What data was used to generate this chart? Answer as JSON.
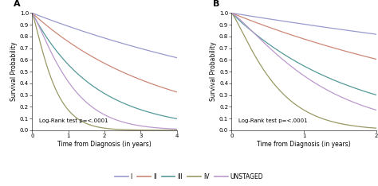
{
  "panel_A": {
    "title": "A",
    "xlim": [
      0,
      4
    ],
    "ylim": [
      0.0,
      1.0
    ],
    "xticks": [
      0,
      1,
      2,
      3,
      4
    ],
    "yticks": [
      0.0,
      0.1,
      0.2,
      0.3,
      0.4,
      0.5,
      0.6,
      0.7,
      0.8,
      0.9,
      1.0
    ],
    "xlabel": "Time from Diagnosis (in years)",
    "ylabel": "Survival Probability",
    "annotation": "Log-Rank test p=<.0001",
    "curves": {
      "I": {
        "color": "#9999cc",
        "lam": 0.12,
        "k": 1.0
      },
      "II": {
        "color": "#cc8877",
        "lam": 0.28,
        "k": 1.0
      },
      "III": {
        "color": "#559999",
        "lam": 0.58,
        "k": 1.0
      },
      "IV": {
        "color": "#999966",
        "lam": 1.6,
        "k": 1.2
      },
      "UNSTAGED": {
        "color": "#bb99cc",
        "lam": 0.9,
        "k": 1.2
      }
    }
  },
  "panel_B": {
    "title": "B",
    "xlim": [
      0,
      2
    ],
    "ylim": [
      0.0,
      1.0
    ],
    "xticks": [
      0,
      1,
      2
    ],
    "yticks": [
      0.0,
      0.1,
      0.2,
      0.3,
      0.4,
      0.5,
      0.6,
      0.7,
      0.8,
      0.9,
      1.0
    ],
    "xlabel": "Time from Diagnosis (in years)",
    "ylabel": "Survival Probability",
    "annotation": "Log-Rank test p=<.0001",
    "curves": {
      "I": {
        "color": "#9999cc",
        "lam": 0.1,
        "k": 1.0
      },
      "II": {
        "color": "#cc8877",
        "lam": 0.25,
        "k": 1.0
      },
      "III": {
        "color": "#559999",
        "lam": 0.6,
        "k": 1.0
      },
      "IV": {
        "color": "#999966",
        "lam": 1.6,
        "k": 1.2
      },
      "UNSTAGED": {
        "color": "#bb99cc",
        "lam": 0.8,
        "k": 1.2
      }
    }
  },
  "legend_labels": [
    "I",
    "II",
    "III",
    "IV",
    "UNSTAGED"
  ],
  "legend_colors": [
    "#9999cc",
    "#cc8877",
    "#559999",
    "#999966",
    "#bb99cc"
  ],
  "background_color": "#ffffff",
  "fontsize_title": 8,
  "fontsize_label": 5.5,
  "fontsize_tick": 5.0,
  "fontsize_annot": 5.0,
  "fontsize_legend": 5.5,
  "linewidth": 0.9
}
